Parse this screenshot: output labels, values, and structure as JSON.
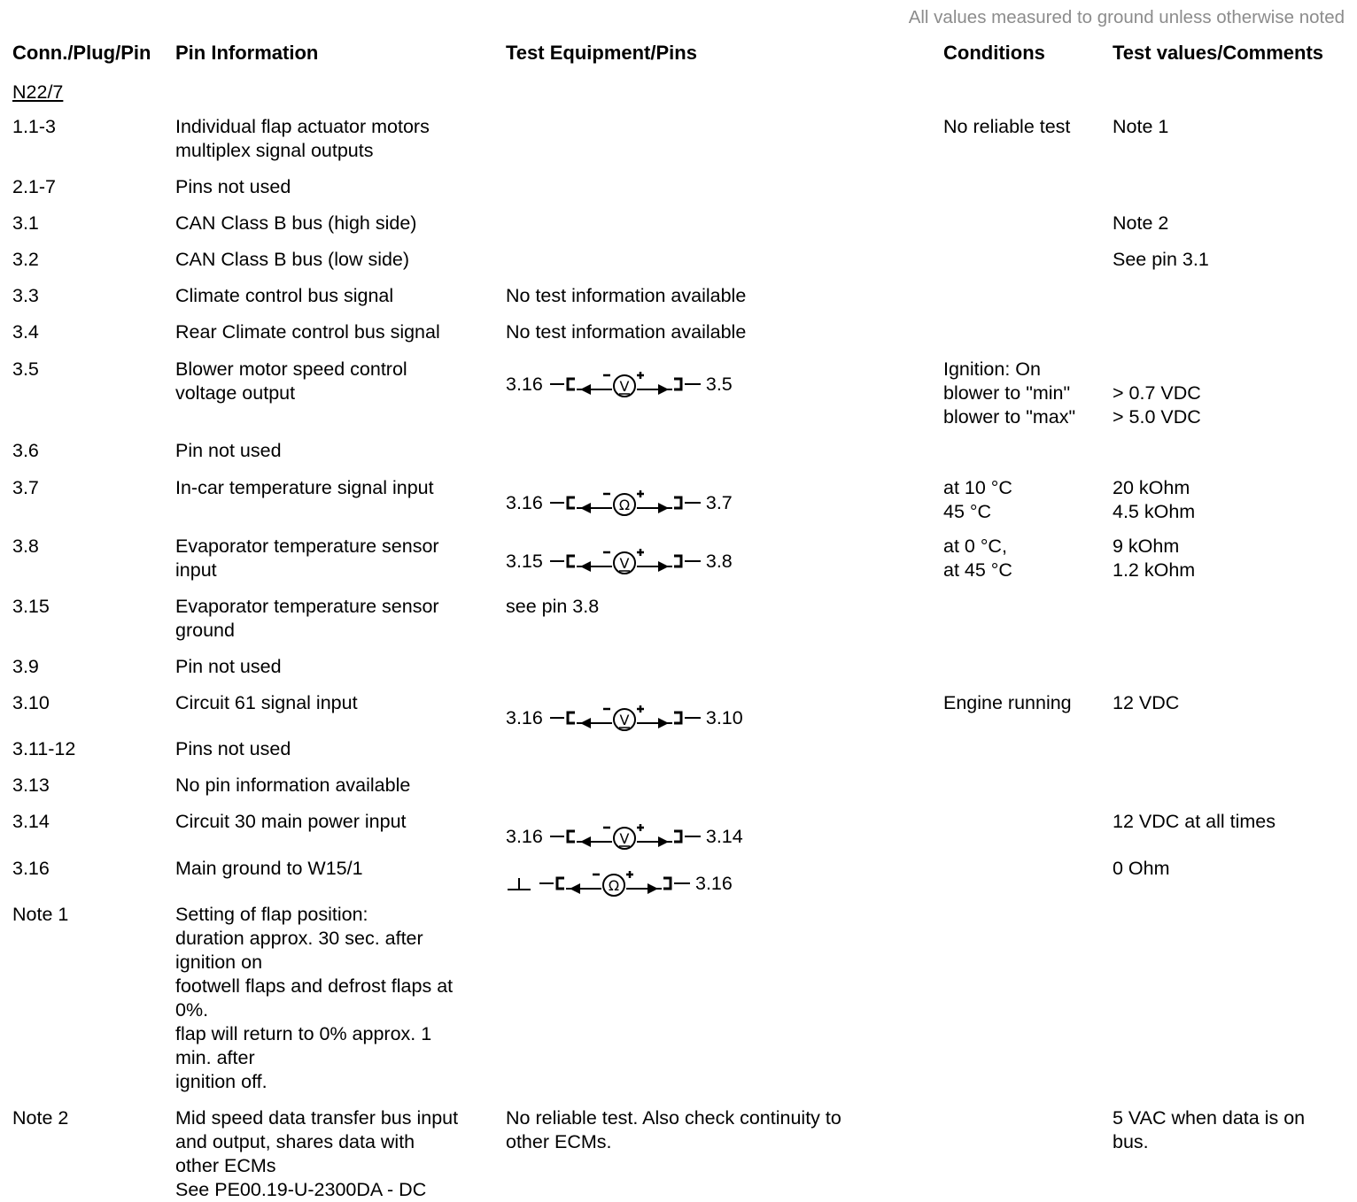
{
  "top_note": "All values measured to ground unless otherwise noted",
  "headers": {
    "pin": "Conn./Plug/Pin",
    "info": "Pin Information",
    "equipment": "Test Equipment/Pins",
    "conditions": "Conditions",
    "values": "Test values/Comments"
  },
  "connector": "N22/7",
  "rows": [
    {
      "pin": "1.1-3",
      "info": "Individual flap actuator motors\nmultiplex signal outputs",
      "equipment": "",
      "conditions": "No reliable test",
      "values": "Note 1"
    },
    {
      "pin": "2.1-7",
      "info": "Pins not used",
      "equipment": "",
      "conditions": "",
      "values": ""
    },
    {
      "pin": "3.1",
      "info": "CAN Class B bus (high side)",
      "equipment": "",
      "conditions": "",
      "values": "Note 2"
    },
    {
      "pin": "3.2",
      "info": "CAN Class B bus (low side)",
      "equipment": "",
      "conditions": "",
      "values": "See pin 3.1"
    },
    {
      "pin": "3.3",
      "info": "Climate control bus signal",
      "equipment": "No test information available",
      "conditions": "",
      "values": ""
    },
    {
      "pin": "3.4",
      "info": "Rear Climate control bus signal",
      "equipment": "No test information available",
      "conditions": "",
      "values": ""
    },
    {
      "pin": "3.5",
      "info": "Blower motor speed control\nvoltage output",
      "equipment": "",
      "diagram": {
        "left": "3.16",
        "meter": "V",
        "right": "3.5"
      },
      "conditions": "Ignition: On\nblower to \"min\"\nblower to \"max\"",
      "values": "\n> 0.7 VDC\n> 5.0 VDC"
    },
    {
      "pin": "3.6",
      "info": "Pin not used",
      "equipment": "",
      "conditions": "",
      "values": ""
    },
    {
      "pin": "3.7",
      "info": "In-car temperature signal input",
      "equipment": "",
      "diagram": {
        "left": "3.16",
        "meter": "Ω",
        "right": "3.7"
      },
      "conditions": "at 10 °C\n45 °C",
      "values": "20 kOhm\n4.5 kOhm"
    },
    {
      "pin": "3.8",
      "info": "Evaporator temperature sensor\ninput",
      "equipment": "",
      "diagram": {
        "left": "3.15",
        "meter": "V",
        "right": "3.8"
      },
      "conditions": "at 0 °C,\nat 45 °C",
      "values": "9 kOhm\n1.2 kOhm"
    },
    {
      "pin": "3.15",
      "info": "Evaporator temperature sensor\nground",
      "equipment": "see pin 3.8",
      "conditions": "",
      "values": ""
    },
    {
      "pin": "3.9",
      "info": "Pin not used",
      "equipment": "",
      "conditions": "",
      "values": ""
    },
    {
      "pin": "3.10",
      "info": "Circuit 61 signal input",
      "equipment": "",
      "diagram": {
        "left": "3.16",
        "meter": "V",
        "right": "3.10"
      },
      "conditions": "Engine running",
      "values": "12 VDC"
    },
    {
      "pin": "3.11-12",
      "info": "Pins not used",
      "equipment": "",
      "conditions": "",
      "values": ""
    },
    {
      "pin": "3.13",
      "info": "No pin information available",
      "equipment": "",
      "conditions": "",
      "values": ""
    },
    {
      "pin": "3.14",
      "info": "Circuit 30 main power input",
      "equipment": "",
      "diagram": {
        "left": "3.16",
        "meter": "V",
        "right": "3.14"
      },
      "conditions": "",
      "values": "12 VDC at all times"
    },
    {
      "pin": "3.16",
      "info": "Main ground to W15/1",
      "equipment": "",
      "diagram": {
        "left": "ground",
        "meter": "Ω",
        "right": "3.16"
      },
      "conditions": "",
      "values": "0 Ohm"
    },
    {
      "pin": "Note 1",
      "info": "Setting of flap position:\nduration approx. 30 sec. after\nignition on\nfootwell flaps and defrost flaps at\n0%.\nflap will return to 0% approx. 1\nmin. after\nignition off.",
      "equipment": "",
      "conditions": "",
      "values": ""
    },
    {
      "pin": "Note 2",
      "info": "Mid speed data transfer bus input\nand output, shares data with\nother ECMs\nSee PE00.19-U-2300DA - DC",
      "equipment": "No reliable test. Also check continuity to\nother ECMs.",
      "conditions": "",
      "values": "5 VAC when data is on\nbus."
    }
  ]
}
